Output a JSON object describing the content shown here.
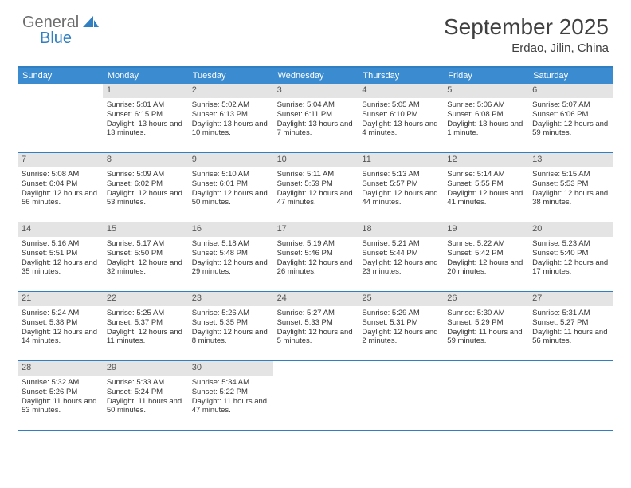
{
  "logo": {
    "line1": "General",
    "line2": "Blue"
  },
  "title": "September 2025",
  "location": "Erdao, Jilin, China",
  "colors": {
    "header_bg": "#3a8bd0",
    "border": "#2f7fc2",
    "daynum_bg": "#e4e4e4",
    "text": "#333333",
    "title": "#404040"
  },
  "day_names": [
    "Sunday",
    "Monday",
    "Tuesday",
    "Wednesday",
    "Thursday",
    "Friday",
    "Saturday"
  ],
  "weeks": [
    [
      {
        "n": "",
        "sr": "",
        "ss": "",
        "dl": ""
      },
      {
        "n": "1",
        "sr": "Sunrise: 5:01 AM",
        "ss": "Sunset: 6:15 PM",
        "dl": "Daylight: 13 hours and 13 minutes."
      },
      {
        "n": "2",
        "sr": "Sunrise: 5:02 AM",
        "ss": "Sunset: 6:13 PM",
        "dl": "Daylight: 13 hours and 10 minutes."
      },
      {
        "n": "3",
        "sr": "Sunrise: 5:04 AM",
        "ss": "Sunset: 6:11 PM",
        "dl": "Daylight: 13 hours and 7 minutes."
      },
      {
        "n": "4",
        "sr": "Sunrise: 5:05 AM",
        "ss": "Sunset: 6:10 PM",
        "dl": "Daylight: 13 hours and 4 minutes."
      },
      {
        "n": "5",
        "sr": "Sunrise: 5:06 AM",
        "ss": "Sunset: 6:08 PM",
        "dl": "Daylight: 13 hours and 1 minute."
      },
      {
        "n": "6",
        "sr": "Sunrise: 5:07 AM",
        "ss": "Sunset: 6:06 PM",
        "dl": "Daylight: 12 hours and 59 minutes."
      }
    ],
    [
      {
        "n": "7",
        "sr": "Sunrise: 5:08 AM",
        "ss": "Sunset: 6:04 PM",
        "dl": "Daylight: 12 hours and 56 minutes."
      },
      {
        "n": "8",
        "sr": "Sunrise: 5:09 AM",
        "ss": "Sunset: 6:02 PM",
        "dl": "Daylight: 12 hours and 53 minutes."
      },
      {
        "n": "9",
        "sr": "Sunrise: 5:10 AM",
        "ss": "Sunset: 6:01 PM",
        "dl": "Daylight: 12 hours and 50 minutes."
      },
      {
        "n": "10",
        "sr": "Sunrise: 5:11 AM",
        "ss": "Sunset: 5:59 PM",
        "dl": "Daylight: 12 hours and 47 minutes."
      },
      {
        "n": "11",
        "sr": "Sunrise: 5:13 AM",
        "ss": "Sunset: 5:57 PM",
        "dl": "Daylight: 12 hours and 44 minutes."
      },
      {
        "n": "12",
        "sr": "Sunrise: 5:14 AM",
        "ss": "Sunset: 5:55 PM",
        "dl": "Daylight: 12 hours and 41 minutes."
      },
      {
        "n": "13",
        "sr": "Sunrise: 5:15 AM",
        "ss": "Sunset: 5:53 PM",
        "dl": "Daylight: 12 hours and 38 minutes."
      }
    ],
    [
      {
        "n": "14",
        "sr": "Sunrise: 5:16 AM",
        "ss": "Sunset: 5:51 PM",
        "dl": "Daylight: 12 hours and 35 minutes."
      },
      {
        "n": "15",
        "sr": "Sunrise: 5:17 AM",
        "ss": "Sunset: 5:50 PM",
        "dl": "Daylight: 12 hours and 32 minutes."
      },
      {
        "n": "16",
        "sr": "Sunrise: 5:18 AM",
        "ss": "Sunset: 5:48 PM",
        "dl": "Daylight: 12 hours and 29 minutes."
      },
      {
        "n": "17",
        "sr": "Sunrise: 5:19 AM",
        "ss": "Sunset: 5:46 PM",
        "dl": "Daylight: 12 hours and 26 minutes."
      },
      {
        "n": "18",
        "sr": "Sunrise: 5:21 AM",
        "ss": "Sunset: 5:44 PM",
        "dl": "Daylight: 12 hours and 23 minutes."
      },
      {
        "n": "19",
        "sr": "Sunrise: 5:22 AM",
        "ss": "Sunset: 5:42 PM",
        "dl": "Daylight: 12 hours and 20 minutes."
      },
      {
        "n": "20",
        "sr": "Sunrise: 5:23 AM",
        "ss": "Sunset: 5:40 PM",
        "dl": "Daylight: 12 hours and 17 minutes."
      }
    ],
    [
      {
        "n": "21",
        "sr": "Sunrise: 5:24 AM",
        "ss": "Sunset: 5:38 PM",
        "dl": "Daylight: 12 hours and 14 minutes."
      },
      {
        "n": "22",
        "sr": "Sunrise: 5:25 AM",
        "ss": "Sunset: 5:37 PM",
        "dl": "Daylight: 12 hours and 11 minutes."
      },
      {
        "n": "23",
        "sr": "Sunrise: 5:26 AM",
        "ss": "Sunset: 5:35 PM",
        "dl": "Daylight: 12 hours and 8 minutes."
      },
      {
        "n": "24",
        "sr": "Sunrise: 5:27 AM",
        "ss": "Sunset: 5:33 PM",
        "dl": "Daylight: 12 hours and 5 minutes."
      },
      {
        "n": "25",
        "sr": "Sunrise: 5:29 AM",
        "ss": "Sunset: 5:31 PM",
        "dl": "Daylight: 12 hours and 2 minutes."
      },
      {
        "n": "26",
        "sr": "Sunrise: 5:30 AM",
        "ss": "Sunset: 5:29 PM",
        "dl": "Daylight: 11 hours and 59 minutes."
      },
      {
        "n": "27",
        "sr": "Sunrise: 5:31 AM",
        "ss": "Sunset: 5:27 PM",
        "dl": "Daylight: 11 hours and 56 minutes."
      }
    ],
    [
      {
        "n": "28",
        "sr": "Sunrise: 5:32 AM",
        "ss": "Sunset: 5:26 PM",
        "dl": "Daylight: 11 hours and 53 minutes."
      },
      {
        "n": "29",
        "sr": "Sunrise: 5:33 AM",
        "ss": "Sunset: 5:24 PM",
        "dl": "Daylight: 11 hours and 50 minutes."
      },
      {
        "n": "30",
        "sr": "Sunrise: 5:34 AM",
        "ss": "Sunset: 5:22 PM",
        "dl": "Daylight: 11 hours and 47 minutes."
      },
      {
        "n": "",
        "sr": "",
        "ss": "",
        "dl": ""
      },
      {
        "n": "",
        "sr": "",
        "ss": "",
        "dl": ""
      },
      {
        "n": "",
        "sr": "",
        "ss": "",
        "dl": ""
      },
      {
        "n": "",
        "sr": "",
        "ss": "",
        "dl": ""
      }
    ]
  ]
}
